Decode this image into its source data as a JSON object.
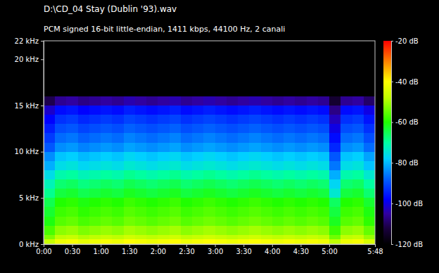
{
  "chart_data": {
    "type": "heatmap",
    "title": "D:\\CD_04 Stay (Dublin '93).wav",
    "subtitle": "PCM signed 16-bit little-endian, 1411 kbps, 44100 Hz, 2 canali",
    "x_bins": [
      0,
      12,
      24,
      36,
      48,
      60,
      72,
      84,
      96,
      108,
      120,
      132,
      144,
      156,
      168,
      180,
      192,
      204,
      216,
      228,
      240,
      252,
      264,
      276,
      288,
      300,
      312,
      324,
      336,
      348
    ],
    "y_bins": [
      0,
      0.5,
      1,
      2,
      3,
      4,
      5,
      6,
      7,
      8,
      9,
      10,
      11,
      12,
      13,
      14,
      15,
      16
    ],
    "values": [
      [
        -47,
        -42,
        -41,
        -43,
        -42,
        -41,
        -42,
        -40,
        -41,
        -42,
        -41,
        -40,
        -42,
        -41,
        -40,
        -41,
        -42,
        -41,
        -40,
        -41,
        -42,
        -41,
        -42,
        -41,
        -42,
        -48,
        -42,
        -41,
        -45
      ],
      [
        -53,
        -48,
        -47,
        -49,
        -48,
        -47,
        -48,
        -46,
        -47,
        -48,
        -47,
        -46,
        -48,
        -47,
        -46,
        -47,
        -48,
        -47,
        -46,
        -47,
        -48,
        -47,
        -48,
        -47,
        -48,
        -54,
        -48,
        -47,
        -51
      ],
      [
        -57,
        -52,
        -51,
        -53,
        -52,
        -51,
        -52,
        -50,
        -51,
        -52,
        -51,
        -50,
        -52,
        -51,
        -50,
        -51,
        -52,
        -51,
        -50,
        -51,
        -52,
        -51,
        -52,
        -51,
        -52,
        -58,
        -52,
        -51,
        -55
      ],
      [
        -61,
        -56,
        -55,
        -57,
        -56,
        -55,
        -56,
        -54,
        -55,
        -56,
        -55,
        -54,
        -56,
        -55,
        -54,
        -55,
        -56,
        -55,
        -54,
        -55,
        -56,
        -55,
        -56,
        -55,
        -56,
        -62,
        -56,
        -55,
        -59
      ],
      [
        -63,
        -58,
        -57,
        -59,
        -58,
        -57,
        -58,
        -56,
        -57,
        -58,
        -57,
        -56,
        -58,
        -57,
        -56,
        -57,
        -58,
        -57,
        -56,
        -57,
        -58,
        -57,
        -58,
        -57,
        -58,
        -64,
        -58,
        -57,
        -61
      ],
      [
        -65,
        -60,
        -59,
        -61,
        -60,
        -59,
        -60,
        -58,
        -59,
        -60,
        -59,
        -58,
        -60,
        -59,
        -58,
        -59,
        -60,
        -59,
        -58,
        -59,
        -60,
        -59,
        -60,
        -59,
        -60,
        -66,
        -60,
        -59,
        -63
      ],
      [
        -69,
        -64,
        -63,
        -65,
        -64,
        -63,
        -64,
        -62,
        -63,
        -64,
        -63,
        -62,
        -64,
        -63,
        -62,
        -63,
        -64,
        -63,
        -62,
        -63,
        -64,
        -63,
        -64,
        -63,
        -64,
        -74,
        -64,
        -63,
        -67
      ],
      [
        -72,
        -67,
        -66,
        -68,
        -67,
        -66,
        -67,
        -65,
        -66,
        -67,
        -66,
        -65,
        -67,
        -66,
        -65,
        -66,
        -67,
        -66,
        -65,
        -66,
        -67,
        -66,
        -67,
        -66,
        -67,
        -77,
        -67,
        -66,
        -70
      ],
      [
        -76,
        -71,
        -70,
        -72,
        -71,
        -70,
        -71,
        -69,
        -70,
        -71,
        -70,
        -69,
        -71,
        -70,
        -69,
        -70,
        -71,
        -70,
        -69,
        -70,
        -71,
        -70,
        -71,
        -70,
        -71,
        -81,
        -71,
        -70,
        -74
      ],
      [
        -81,
        -76,
        -75,
        -77,
        -76,
        -75,
        -76,
        -74,
        -75,
        -76,
        -75,
        -74,
        -76,
        -75,
        -74,
        -75,
        -76,
        -75,
        -74,
        -75,
        -76,
        -75,
        -76,
        -75,
        -76,
        -86,
        -76,
        -75,
        -79
      ],
      [
        -84,
        -79,
        -78,
        -80,
        -79,
        -78,
        -79,
        -77,
        -78,
        -79,
        -78,
        -77,
        -79,
        -78,
        -77,
        -78,
        -79,
        -78,
        -77,
        -78,
        -79,
        -78,
        -79,
        -78,
        -79,
        -89,
        -79,
        -78,
        -82
      ],
      [
        -89,
        -84,
        -83,
        -85,
        -84,
        -83,
        -84,
        -82,
        -83,
        -84,
        -83,
        -82,
        -84,
        -83,
        -82,
        -83,
        -84,
        -83,
        -82,
        -83,
        -84,
        -83,
        -84,
        -83,
        -84,
        -94,
        -84,
        -83,
        -87
      ],
      [
        -92,
        -87,
        -86,
        -88,
        -87,
        -86,
        -87,
        -85,
        -86,
        -87,
        -86,
        -85,
        -87,
        -86,
        -85,
        -86,
        -87,
        -86,
        -85,
        -86,
        -87,
        -86,
        -87,
        -86,
        -87,
        -97,
        -87,
        -86,
        -90
      ],
      [
        -95,
        -90,
        -89,
        -91,
        -90,
        -89,
        -90,
        -88,
        -89,
        -90,
        -89,
        -88,
        -90,
        -89,
        -88,
        -89,
        -90,
        -89,
        -88,
        -89,
        -90,
        -89,
        -90,
        -89,
        -90,
        -100,
        -90,
        -89,
        -93
      ],
      [
        -98,
        -93,
        -92,
        -94,
        -93,
        -92,
        -93,
        -91,
        -92,
        -93,
        -92,
        -91,
        -93,
        -92,
        -91,
        -92,
        -93,
        -92,
        -91,
        -92,
        -93,
        -92,
        -93,
        -92,
        -93,
        -103,
        -93,
        -92,
        -96
      ],
      [
        -102,
        -97,
        -96,
        -98,
        -97,
        -96,
        -97,
        -95,
        -96,
        -97,
        -96,
        -95,
        -97,
        -96,
        -95,
        -96,
        -97,
        -96,
        -95,
        -96,
        -97,
        -96,
        -97,
        -96,
        -97,
        -107,
        -97,
        -96,
        -100
      ],
      [
        -111,
        -106,
        -105,
        -107,
        -106,
        -105,
        -106,
        -104,
        -105,
        -106,
        -105,
        -104,
        -106,
        -105,
        -104,
        -105,
        -106,
        -105,
        -104,
        -105,
        -106,
        -105,
        -106,
        -105,
        -106,
        -114,
        -106,
        -105,
        -109
      ]
    ],
    "xlim": [
      0,
      348
    ],
    "xticks": [
      {
        "value": 0,
        "label": "0:00"
      },
      {
        "value": 30,
        "label": "0:30"
      },
      {
        "value": 60,
        "label": "1:00"
      },
      {
        "value": 90,
        "label": "1:30"
      },
      {
        "value": 120,
        "label": "2:00"
      },
      {
        "value": 150,
        "label": "2:30"
      },
      {
        "value": 180,
        "label": "3:00"
      },
      {
        "value": 210,
        "label": "3:30"
      },
      {
        "value": 240,
        "label": "4:00"
      },
      {
        "value": 270,
        "label": "4:30"
      },
      {
        "value": 300,
        "label": "5:00"
      },
      {
        "value": 348,
        "label": "5:48"
      }
    ],
    "ylim": [
      0,
      22
    ],
    "yticks": [
      {
        "value": 0,
        "label": "0 kHz"
      },
      {
        "value": 5,
        "label": "5 kHz"
      },
      {
        "value": 10,
        "label": "10 kHz"
      },
      {
        "value": 15,
        "label": "15 kHz"
      },
      {
        "value": 20,
        "label": "20 kHz"
      },
      {
        "value": 22,
        "label": "22 kHz"
      }
    ],
    "colorbar_lim": [
      -120,
      -20
    ],
    "colorbar_ticks": [
      {
        "value": -20,
        "label": "-20 dB"
      },
      {
        "value": -40,
        "label": "-40 dB"
      },
      {
        "value": -60,
        "label": "-60 dB"
      },
      {
        "value": -80,
        "label": "-80 dB"
      },
      {
        "value": -100,
        "label": "-100 dB"
      },
      {
        "value": -120,
        "label": "-120 dB"
      }
    ]
  }
}
